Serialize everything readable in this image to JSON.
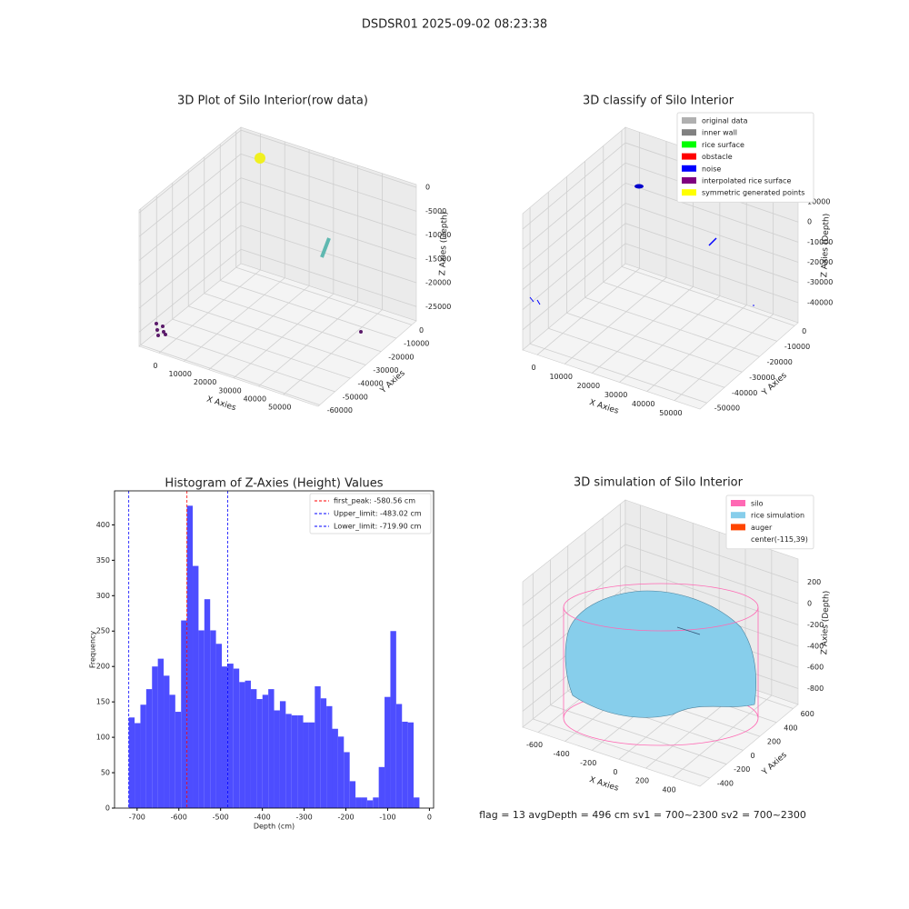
{
  "title": "DSDSR01 2025-09-02 08:23:38",
  "chart_data": [
    {
      "type": "scatter3d",
      "title": "3D Plot of Silo Interior(row data)",
      "xlabel": "X Axies",
      "ylabel": "Y Axies",
      "zlabel": "Z Axies (Depth)",
      "xlim": [
        -8000,
        64000
      ],
      "xticks": [
        0,
        10000,
        20000,
        30000,
        40000,
        50000
      ],
      "ylim": [
        -61000,
        3000
      ],
      "yticks": [
        -60000,
        -50000,
        -40000,
        -30000,
        -20000,
        -10000,
        0
      ],
      "zlim": [
        -28000,
        600
      ],
      "zticks": [
        -25000,
        -20000,
        -15000,
        -10000,
        -5000,
        0
      ]
    },
    {
      "type": "scatter3d",
      "title": "3D classify of Silo Interior",
      "xlabel": "X Axies",
      "ylabel": "Y Axies",
      "zlabel": "Z Axies (Depth)",
      "xlim": [
        -5300,
        59300
      ],
      "xticks": [
        0,
        10000,
        20000,
        30000,
        40000,
        50000
      ],
      "ylim": [
        -54000,
        2000
      ],
      "yticks": [
        -50000,
        -40000,
        -30000,
        -20000,
        -10000,
        0
      ],
      "zlim": [
        -50000,
        17700
      ],
      "zticks": [
        -40000,
        -30000,
        -20000,
        -10000,
        0,
        10000
      ],
      "legend": [
        {
          "name": "original data",
          "color": "#b0b0b0"
        },
        {
          "name": "inner wall",
          "color": "#808080"
        },
        {
          "name": "rice surface",
          "color": "#00ff00"
        },
        {
          "name": "obstacle",
          "color": "#ff0000"
        },
        {
          "name": "noise",
          "color": "#0000ff"
        },
        {
          "name": "interpolated rice surface",
          "color": "#800080"
        },
        {
          "name": "symmetric generated points",
          "color": "#ffff00"
        }
      ]
    },
    {
      "type": "histogram",
      "title": "Histogram of Z-Axies (Height) Values",
      "xlabel": "Depth (cm)",
      "ylabel": "Frequency",
      "color": "#4d4dff",
      "bins": [
        -719.9,
        -705.98,
        -692.06,
        -678.14,
        -664.22,
        -650.3,
        -636.38,
        -622.46,
        -608.54,
        -594.62,
        -580.7,
        -566.78,
        -552.86,
        -538.94,
        -525.02,
        -511.1,
        -497.18,
        -483.26,
        -469.34,
        -455.42,
        -441.5,
        -427.58,
        -413.66,
        -399.74,
        -385.82,
        -371.9,
        -357.98,
        -344.06,
        -330.14,
        -316.22,
        -302.3,
        -288.38,
        -274.46,
        -260.54,
        -246.62,
        -232.7,
        -218.78,
        -204.86,
        -190.94,
        -177.02,
        -163.1,
        -149.18,
        -135.26,
        -121.34,
        -107.42,
        -93.5,
        -79.58,
        -65.66,
        -51.74,
        -37.82,
        -23.9
      ],
      "counts": [
        128,
        120,
        146,
        168,
        200,
        211,
        187,
        160,
        136,
        265,
        427,
        342,
        251,
        295,
        251,
        232,
        200,
        204,
        197,
        178,
        180,
        168,
        154,
        160,
        168,
        138,
        151,
        133,
        131,
        131,
        121,
        121,
        172,
        155,
        144,
        112,
        101,
        79,
        38,
        15,
        15,
        11,
        15,
        58,
        157,
        250,
        147,
        122,
        121,
        15
      ],
      "xlim": [
        -754,
        10
      ],
      "xticks": [
        -700,
        -600,
        -500,
        -400,
        -300,
        -200,
        -100,
        0
      ],
      "ylim": [
        0,
        448
      ],
      "yticks": [
        0,
        50,
        100,
        150,
        200,
        250,
        300,
        350,
        400
      ],
      "vlines": [
        {
          "label": "first_peak: -580.56 cm",
          "value": -580.56,
          "color": "#ff0000"
        },
        {
          "label": "Upper_limit: -483.02 cm",
          "value": -483.02,
          "color": "#0000ff"
        },
        {
          "label": "Lower_limit: -719.90 cm",
          "value": -719.9,
          "color": "#0000ff"
        }
      ]
    },
    {
      "type": "surface3d",
      "title": "3D simulation of Silo Interior",
      "xlabel": "X Axies",
      "ylabel": "Y Axies",
      "zlabel": "Z Axies (Depth)",
      "xlim": [
        -715,
        602
      ],
      "xticks": [
        -600,
        -400,
        -200,
        0,
        200,
        400
      ],
      "ylim": [
        -518,
        659
      ],
      "yticks": [
        -400,
        -200,
        0,
        200,
        400,
        600
      ],
      "zlim": [
        -950,
        420
      ],
      "zticks": [
        -800,
        -600,
        -400,
        -200,
        0,
        200
      ],
      "legend": [
        {
          "name": "silo",
          "color": "#ff69b4"
        },
        {
          "name": "rice simulation",
          "color": "#87ceeb"
        },
        {
          "name": "auger",
          "color": "#ff4500"
        },
        {
          "name": "center(-115,39)"
        }
      ],
      "footer_text": "flag = 13  avgDepth = 496 cm  sv1 = 700~2300  sv2 = 700~2300"
    }
  ]
}
